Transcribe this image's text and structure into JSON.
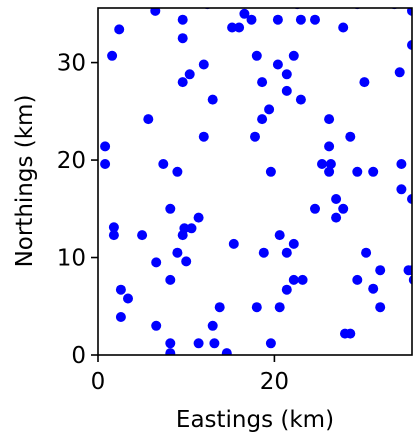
{
  "chart_data": {
    "type": "scatter",
    "title": "",
    "xlabel": "Eastings (km)",
    "ylabel": "Northings (km)",
    "xlim": [
      0,
      35.6
    ],
    "ylim": [
      0,
      35.6
    ],
    "xticks": [
      0,
      20
    ],
    "yticks": [
      0,
      10,
      20,
      30
    ],
    "grid": false,
    "marker_color": "#0000ff",
    "series": [
      {
        "points": [
          [
            0.8,
            21.4
          ],
          [
            0.8,
            19.6
          ],
          [
            1.6,
            30.7
          ],
          [
            1.8,
            13.1
          ],
          [
            1.8,
            12.3
          ],
          [
            2.4,
            33.4
          ],
          [
            2.6,
            6.7
          ],
          [
            2.6,
            3.9
          ],
          [
            3.4,
            5.8
          ],
          [
            5.0,
            12.3
          ],
          [
            5.7,
            24.2
          ],
          [
            6.5,
            35.3
          ],
          [
            6.6,
            9.5
          ],
          [
            6.6,
            3.0
          ],
          [
            7.4,
            19.6
          ],
          [
            8.2,
            15.0
          ],
          [
            8.2,
            7.7
          ],
          [
            8.2,
            1.2
          ],
          [
            8.2,
            0.2
          ],
          [
            9.0,
            18.8
          ],
          [
            9.0,
            10.5
          ],
          [
            9.6,
            34.4
          ],
          [
            9.6,
            32.5
          ],
          [
            9.6,
            28.0
          ],
          [
            9.6,
            12.3
          ],
          [
            9.8,
            13.0
          ],
          [
            10.0,
            9.6
          ],
          [
            10.4,
            28.8
          ],
          [
            10.6,
            13.0
          ],
          [
            11.4,
            14.1
          ],
          [
            11.4,
            1.2
          ],
          [
            12.0,
            29.8
          ],
          [
            12.0,
            22.4
          ],
          [
            12.4,
            36.0
          ],
          [
            13.0,
            26.2
          ],
          [
            13.0,
            3.0
          ],
          [
            13.2,
            1.2
          ],
          [
            13.8,
            4.9
          ],
          [
            14.6,
            0.2
          ],
          [
            15.2,
            33.6
          ],
          [
            15.4,
            11.4
          ],
          [
            16.0,
            33.6
          ],
          [
            16.6,
            35.0
          ],
          [
            17.4,
            34.4
          ],
          [
            17.8,
            22.4
          ],
          [
            18.0,
            30.7
          ],
          [
            18.0,
            4.9
          ],
          [
            18.6,
            28.0
          ],
          [
            18.6,
            24.2
          ],
          [
            18.8,
            10.5
          ],
          [
            19.4,
            25.2
          ],
          [
            19.6,
            18.8
          ],
          [
            19.6,
            1.2
          ],
          [
            20.4,
            34.4
          ],
          [
            20.4,
            29.8
          ],
          [
            20.6,
            12.3
          ],
          [
            20.6,
            4.9
          ],
          [
            21.4,
            28.8
          ],
          [
            21.4,
            27.1
          ],
          [
            21.4,
            10.5
          ],
          [
            21.4,
            6.7
          ],
          [
            22.2,
            30.7
          ],
          [
            22.2,
            11.4
          ],
          [
            22.2,
            7.7
          ],
          [
            22.6,
            36.0
          ],
          [
            23.0,
            34.4
          ],
          [
            23.0,
            26.2
          ],
          [
            23.2,
            7.7
          ],
          [
            24.6,
            34.4
          ],
          [
            24.6,
            15.0
          ],
          [
            25.4,
            19.6
          ],
          [
            26.2,
            24.2
          ],
          [
            26.2,
            21.4
          ],
          [
            26.2,
            18.8
          ],
          [
            26.4,
            19.6
          ],
          [
            27.0,
            14.1
          ],
          [
            27.0,
            16.0
          ],
          [
            27.8,
            33.6
          ],
          [
            27.8,
            15.0
          ],
          [
            28.0,
            2.2
          ],
          [
            28.6,
            22.4
          ],
          [
            28.6,
            2.2
          ],
          [
            29.4,
            36.0
          ],
          [
            29.4,
            18.8
          ],
          [
            29.4,
            7.7
          ],
          [
            30.2,
            28.0
          ],
          [
            30.4,
            10.5
          ],
          [
            31.2,
            18.8
          ],
          [
            31.2,
            6.8
          ],
          [
            32.0,
            8.7
          ],
          [
            32.0,
            4.9
          ],
          [
            33.6,
            36.0
          ],
          [
            34.2,
            29.0
          ],
          [
            34.4,
            19.6
          ],
          [
            34.4,
            17.0
          ],
          [
            35.2,
            8.7
          ],
          [
            35.6,
            35.3
          ],
          [
            35.6,
            31.8
          ],
          [
            35.6,
            16.0
          ],
          [
            35.6,
            8.7
          ],
          [
            35.8,
            7.7
          ]
        ]
      }
    ]
  }
}
